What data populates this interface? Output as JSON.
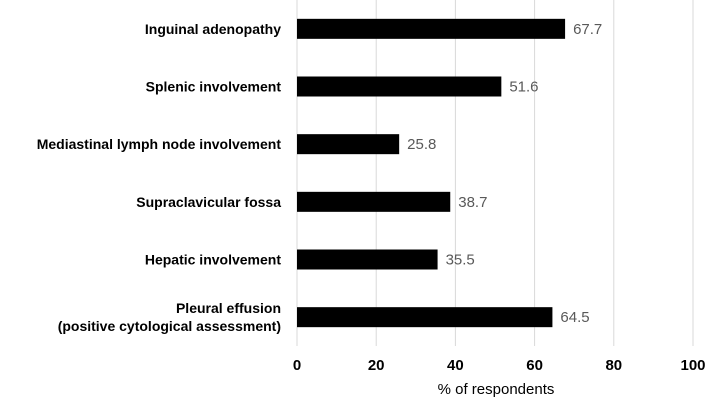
{
  "chart_data": {
    "type": "bar",
    "orientation": "horizontal",
    "categories": [
      [
        "Inguinal adenopathy"
      ],
      [
        "Splenic involvement"
      ],
      [
        "Mediastinal lymph node involvement"
      ],
      [
        "Supraclavicular fossa"
      ],
      [
        "Hepatic involvement"
      ],
      [
        "Pleural effusion",
        "(positive cytological assessment)"
      ]
    ],
    "values": [
      67.7,
      51.6,
      25.8,
      38.7,
      35.5,
      64.5
    ],
    "value_labels": [
      "67.7",
      "51.6",
      "25.8",
      "38.7",
      "35.5",
      "64.5"
    ],
    "xlabel": "% of respondents",
    "xlim": [
      0,
      100
    ],
    "xticks": [
      0,
      20,
      40,
      60,
      80,
      100
    ],
    "grid": true,
    "bar_color": "#000000",
    "label_color": "#595959"
  }
}
